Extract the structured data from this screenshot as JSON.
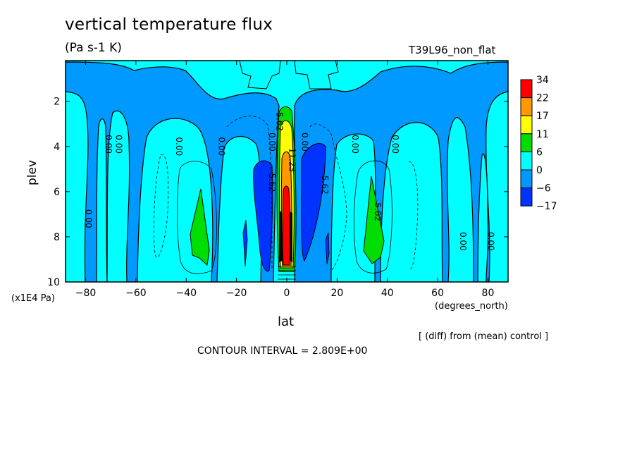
{
  "chart_data": {
    "type": "heatmap",
    "title": "vertical temperature flux",
    "units": "(Pa s-1 K)",
    "experiment": "T39L96_non_flat",
    "xlabel": "lat",
    "x_units": "(degrees_north)",
    "ylabel": "plev",
    "y_scale_note": "(x1E4 Pa)",
    "xlim": [
      -88,
      88
    ],
    "ylim": [
      10,
      0.2
    ],
    "x_ticks": [
      -80,
      -60,
      -40,
      -20,
      0,
      20,
      40,
      60,
      80
    ],
    "x_tick_labels": [
      "-80",
      "-60",
      "-40",
      "-20",
      "0",
      "20",
      "40",
      "60",
      "80"
    ],
    "y_ticks": [
      2,
      4,
      6,
      8,
      10
    ],
    "y_tick_labels": [
      "2",
      "4",
      "6",
      "8",
      "10"
    ],
    "colorbar": {
      "levels": [
        "34",
        "22",
        "17",
        "11",
        "6",
        "0",
        "-6",
        "-17"
      ],
      "colors": [
        "#ff0000",
        "#ff9900",
        "#ffff00",
        "#00dd00",
        "#00ffff",
        "#0099ff",
        "#0033ff"
      ]
    },
    "contour_labels": [
      {
        "text": "0.00",
        "lat": -72,
        "plev": 3.9
      },
      {
        "text": "0.00",
        "lat": -68,
        "plev": 3.9
      },
      {
        "text": "0.00",
        "lat": -80,
        "plev": 7.2
      },
      {
        "text": "0.00",
        "lat": -44,
        "plev": 4.0
      },
      {
        "text": "0.00",
        "lat": -27,
        "plev": 4.0
      },
      {
        "text": "0.00",
        "lat": -7,
        "plev": 3.8
      },
      {
        "text": "5.62",
        "lat": -4,
        "plev": 2.9
      },
      {
        "text": "5.62",
        "lat": -7,
        "plev": 5.6
      },
      {
        "text": "11.23",
        "lat": 1,
        "plev": 4.6
      },
      {
        "text": "0.00",
        "lat": 6,
        "plev": 3.8
      },
      {
        "text": "5.62",
        "lat": 14,
        "plev": 5.7
      },
      {
        "text": "0.00",
        "lat": 26,
        "plev": 3.9
      },
      {
        "text": "0.00",
        "lat": 42,
        "plev": 3.9
      },
      {
        "text": "5.62",
        "lat": 35,
        "plev": 6.9
      },
      {
        "text": "0.00",
        "lat": 69,
        "plev": 8.2
      },
      {
        "text": "0.00",
        "lat": 80,
        "plev": 8.2
      }
    ]
  },
  "footer": {
    "diff_note": "[ (diff) from (mean) control ]",
    "contour_interval": "CONTOUR INTERVAL = 2.809E+00"
  }
}
